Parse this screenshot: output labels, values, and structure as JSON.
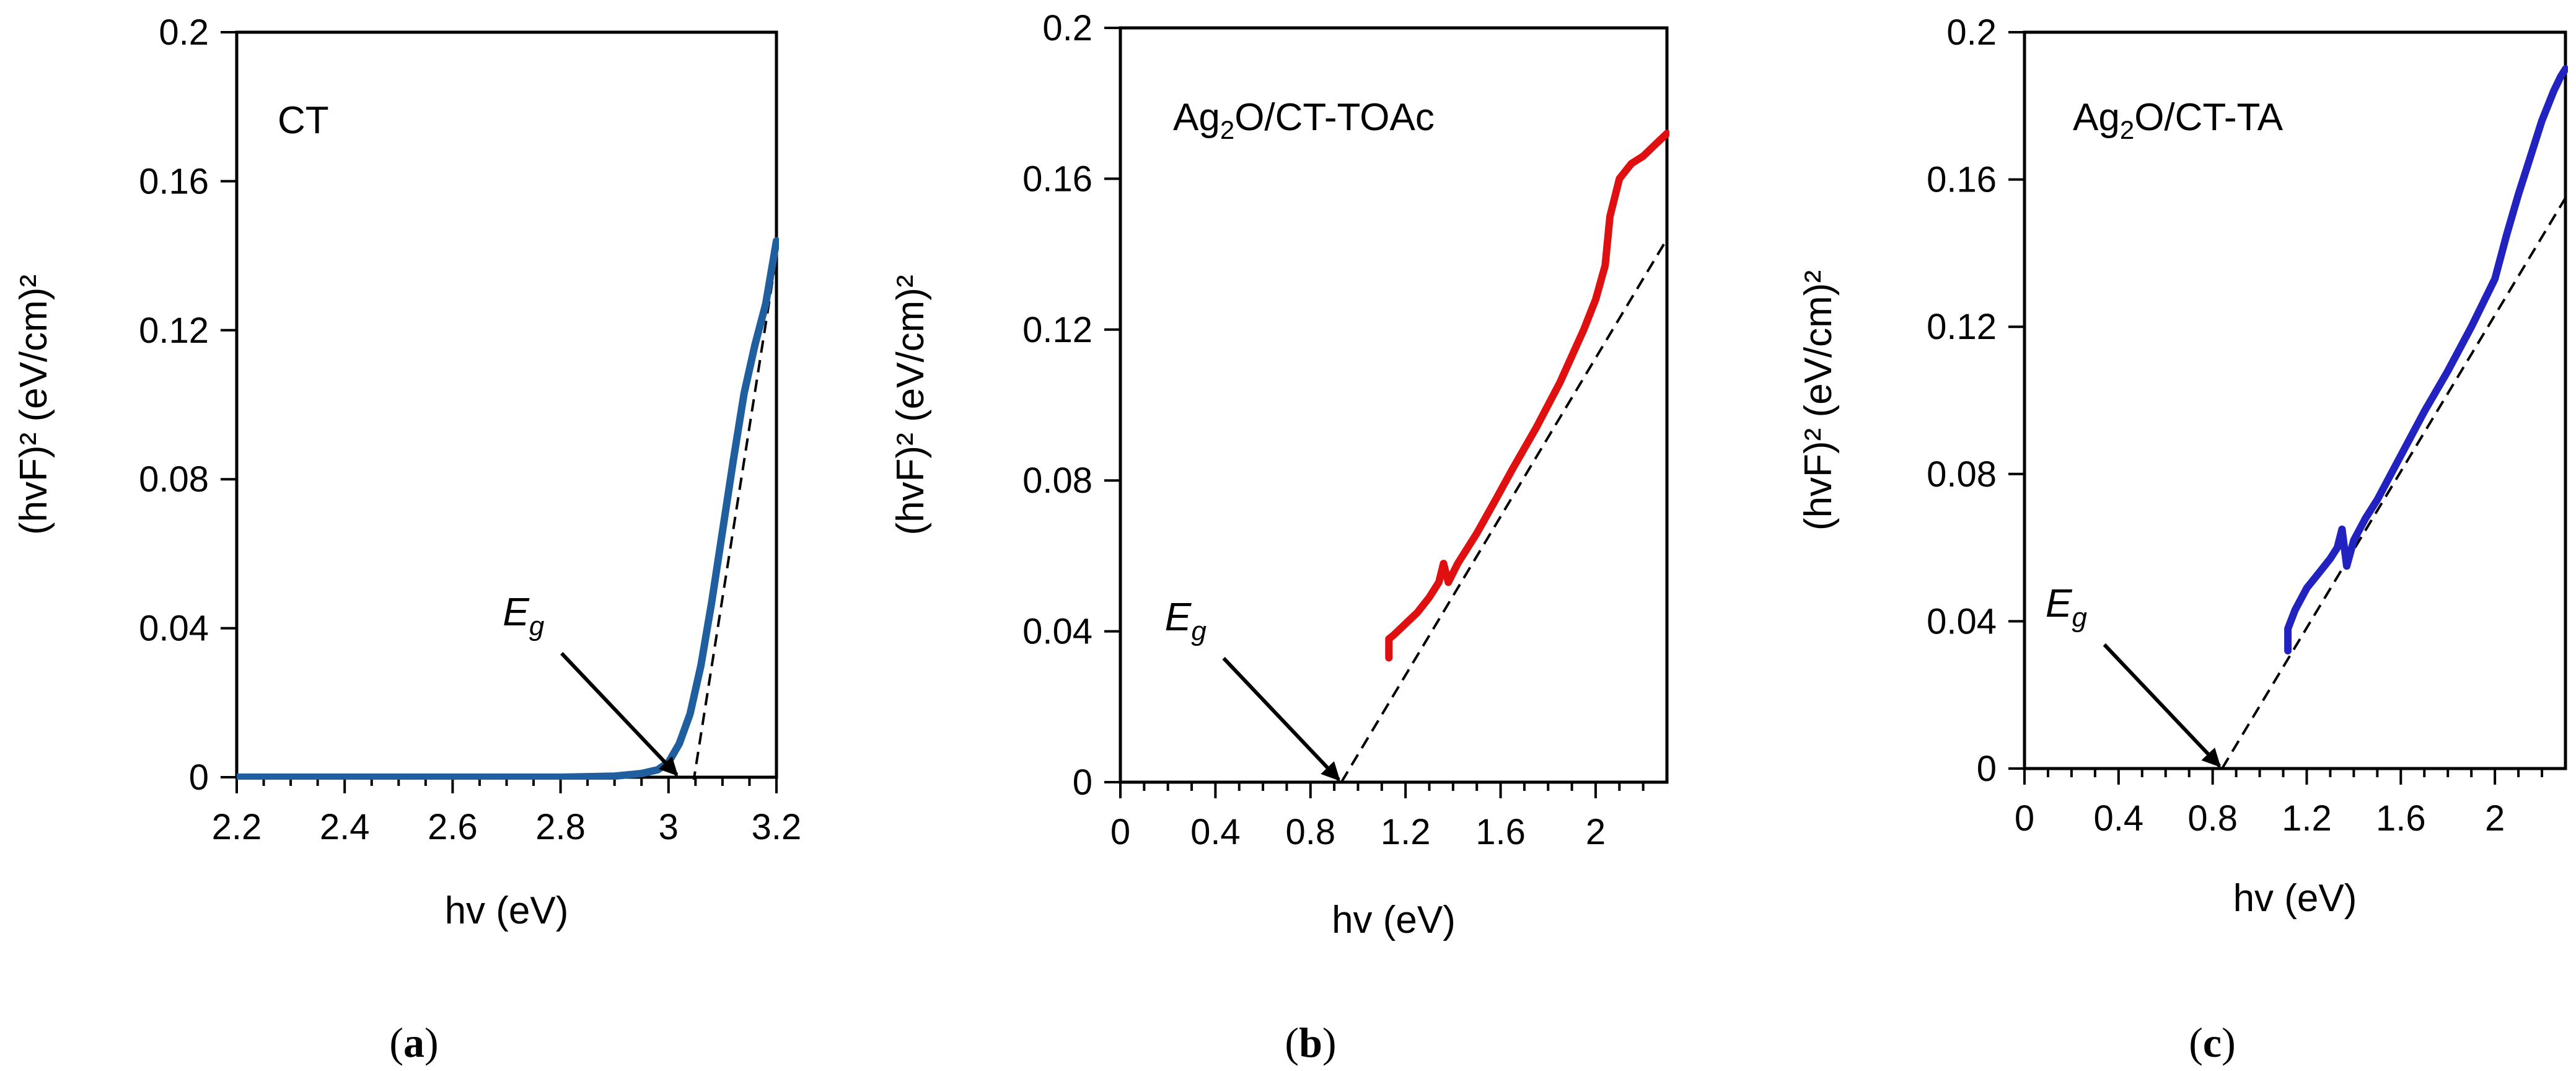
{
  "chart_data": [
    {
      "type": "line",
      "title": "CT",
      "title_subscript": "",
      "title_suffix": "",
      "caption": "a",
      "xlabel": "hv (eV)",
      "ylabel": "(hvF)² (eV/cm)²",
      "xlim": [
        2.2,
        3.2
      ],
      "ylim": [
        0,
        0.2
      ],
      "xticks": [
        2.2,
        2.4,
        2.6,
        2.8,
        3.0,
        3.2
      ],
      "xtick_labels": [
        "2.2",
        "2.4",
        "2.6",
        "2.8",
        "3",
        "3.2"
      ],
      "minor_step": 0.05,
      "yticks": [
        0,
        0.04,
        0.08,
        0.12,
        0.16,
        0.2
      ],
      "ytick_labels": [
        "0",
        "0.04",
        "0.08",
        "0.12",
        "0.16",
        "0.2"
      ],
      "grid": false,
      "series": [
        {
          "color": "#1f5fa0",
          "x": [
            2.2,
            2.4,
            2.6,
            2.8,
            2.9,
            2.95,
            2.98,
            3.0,
            3.02,
            3.04,
            3.06,
            3.08,
            3.1,
            3.12,
            3.14,
            3.16,
            3.18,
            3.2
          ],
          "y": [
            0.0,
            0.0,
            0.0,
            0.0,
            0.0003,
            0.001,
            0.002,
            0.004,
            0.009,
            0.017,
            0.03,
            0.047,
            0.066,
            0.085,
            0.103,
            0.116,
            0.127,
            0.144
          ]
        }
      ],
      "fit_line": {
        "x": [
          3.04,
          3.2
        ],
        "y": [
          -0.007,
          0.14
        ]
      },
      "eg": {
        "label": "E",
        "sub": "g",
        "x": 3.02,
        "y": 0.0
      }
    },
    {
      "type": "line",
      "title": "Ag",
      "title_subscript": "2",
      "title_suffix": "O/CT-TOAc",
      "caption": "b",
      "xlabel": "hv (eV)",
      "ylabel": "(hvF)² (eV/cm)²",
      "xlim": [
        0,
        2.3
      ],
      "ylim": [
        0,
        0.2
      ],
      "xticks": [
        0,
        0.4,
        0.8,
        1.2,
        1.6,
        2.0
      ],
      "xtick_labels": [
        "0",
        "0.4",
        "0.8",
        "1.2",
        "1.6",
        "2"
      ],
      "minor_step": 0.1,
      "yticks": [
        0,
        0.04,
        0.08,
        0.12,
        0.16,
        0.2
      ],
      "ytick_labels": [
        "0",
        "0.04",
        "0.08",
        "0.12",
        "0.16",
        "0.2"
      ],
      "grid": false,
      "series": [
        {
          "color": "#e01010",
          "x": [
            1.13,
            1.13,
            1.15,
            1.2,
            1.25,
            1.3,
            1.34,
            1.36,
            1.38,
            1.42,
            1.5,
            1.58,
            1.65,
            1.75,
            1.85,
            1.95,
            2.0,
            2.04,
            2.06,
            2.1,
            2.15,
            2.2,
            2.25,
            2.3
          ],
          "y": [
            0.033,
            0.038,
            0.039,
            0.042,
            0.045,
            0.049,
            0.053,
            0.058,
            0.053,
            0.058,
            0.066,
            0.075,
            0.083,
            0.094,
            0.106,
            0.12,
            0.128,
            0.137,
            0.15,
            0.16,
            0.164,
            0.166,
            0.169,
            0.172
          ]
        }
      ],
      "fit_line": {
        "x": [
          0.93,
          2.3
        ],
        "y": [
          0.0,
          0.144
        ]
      },
      "eg": {
        "label": "E",
        "sub": "g",
        "x": 0.93,
        "y": 0.0
      }
    },
    {
      "type": "line",
      "title": "Ag",
      "title_subscript": "2",
      "title_suffix": "O/CT-TA",
      "caption": "c",
      "xlabel": "hv (eV)",
      "ylabel": "(hvF)² (eV/cm)²",
      "xlim": [
        0,
        2.3
      ],
      "ylim": [
        0,
        0.2
      ],
      "xticks": [
        0,
        0.4,
        0.8,
        1.2,
        1.6,
        2.0
      ],
      "xtick_labels": [
        "0",
        "0.4",
        "0.8",
        "1.2",
        "1.6",
        "2"
      ],
      "minor_step": 0.1,
      "yticks": [
        0,
        0.04,
        0.08,
        0.12,
        0.16,
        0.2
      ],
      "ytick_labels": [
        "0",
        "0.04",
        "0.08",
        "0.12",
        "0.16",
        "0.2"
      ],
      "grid": false,
      "series": [
        {
          "color": "#2222c0",
          "x": [
            1.12,
            1.12,
            1.15,
            1.2,
            1.25,
            1.3,
            1.33,
            1.35,
            1.37,
            1.4,
            1.45,
            1.5,
            1.6,
            1.7,
            1.8,
            1.9,
            2.0,
            2.05,
            2.1,
            2.15,
            2.2,
            2.25,
            2.28,
            2.3
          ],
          "y": [
            0.032,
            0.038,
            0.043,
            0.049,
            0.053,
            0.057,
            0.06,
            0.065,
            0.055,
            0.062,
            0.068,
            0.073,
            0.085,
            0.097,
            0.108,
            0.12,
            0.133,
            0.145,
            0.156,
            0.166,
            0.176,
            0.184,
            0.188,
            0.19
          ]
        }
      ],
      "fit_line": {
        "x": [
          0.84,
          2.3
        ],
        "y": [
          0.0,
          0.155
        ]
      },
      "eg": {
        "label": "E",
        "sub": "g",
        "x": 0.84,
        "y": 0.0
      }
    }
  ],
  "colors": {
    "axis": "#000000",
    "fit_line": "#000000"
  }
}
